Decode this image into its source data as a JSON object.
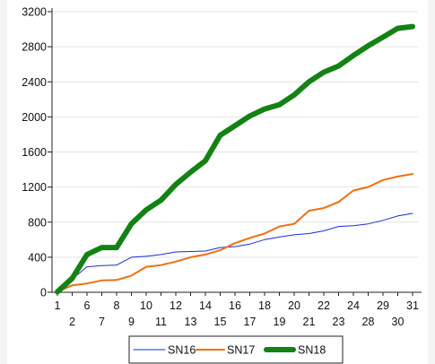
{
  "chart_data": {
    "type": "line",
    "title": "",
    "xlabel": "",
    "ylabel": "",
    "ylim": [
      0,
      3200
    ],
    "yticks": [
      0,
      400,
      800,
      1200,
      1600,
      2000,
      2400,
      2800,
      3200
    ],
    "grid": "horizontal",
    "legend_position": "bottom",
    "x": [
      "1",
      "2",
      "6",
      "7",
      "8",
      "9",
      "10",
      "11",
      "12",
      "13",
      "14",
      "15",
      "16",
      "17",
      "18",
      "19",
      "20",
      "21",
      "22",
      "23",
      "24",
      "28",
      "29",
      "30",
      "31"
    ],
    "series": [
      {
        "name": "SN16",
        "color": "#1a2dd0",
        "values": [
          5,
          150,
          290,
          305,
          310,
          400,
          410,
          430,
          460,
          465,
          470,
          510,
          520,
          550,
          600,
          630,
          655,
          670,
          700,
          750,
          760,
          780,
          820,
          870,
          900
        ]
      },
      {
        "name": "SN17",
        "color": "#ef6f0f",
        "values": [
          5,
          80,
          100,
          135,
          140,
          190,
          290,
          310,
          350,
          400,
          430,
          480,
          560,
          620,
          670,
          750,
          780,
          930,
          960,
          1030,
          1160,
          1200,
          1280,
          1320,
          1350
        ]
      },
      {
        "name": "SN18",
        "color": "#138213",
        "values": [
          5,
          160,
          430,
          510,
          510,
          780,
          940,
          1050,
          1230,
          1370,
          1500,
          1790,
          1900,
          2010,
          2090,
          2140,
          2250,
          2400,
          2510,
          2580,
          2700,
          2810,
          2910,
          3010,
          3030
        ]
      }
    ]
  }
}
